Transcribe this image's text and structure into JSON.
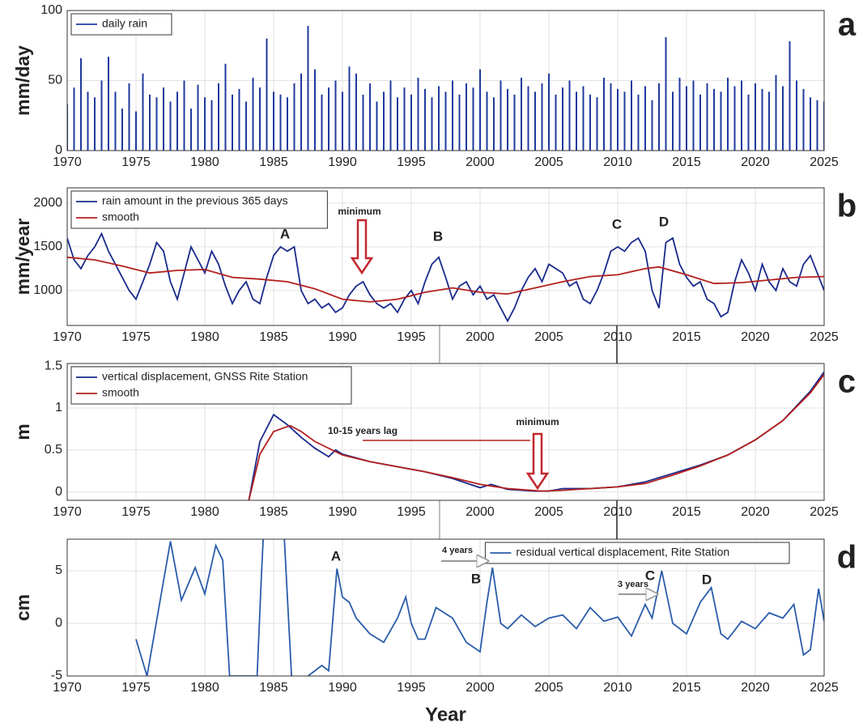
{
  "chart_data": [
    {
      "type": "bar",
      "label": "a",
      "ylabel": "mm/day",
      "xlim": [
        1970,
        2025
      ],
      "ylim": [
        0,
        100
      ],
      "xticks": [
        1970,
        1975,
        1980,
        1985,
        1990,
        1995,
        2000,
        2005,
        2010,
        2015,
        2020,
        2025
      ],
      "yticks": [
        0,
        50,
        100
      ],
      "grid": true,
      "legend": "upper left",
      "series": [
        {
          "name": "daily rain",
          "color": "#1f3a9e",
          "x": [
            1970,
            1970.5,
            1971,
            1971.5,
            1972,
            1972.5,
            1973,
            1973.5,
            1974,
            1974.5,
            1975,
            1975.5,
            1976,
            1976.5,
            1977,
            1977.5,
            1978,
            1978.5,
            1979,
            1979.5,
            1980,
            1980.5,
            1981,
            1981.5,
            1982,
            1982.5,
            1983,
            1983.5,
            1984,
            1984.5,
            1985,
            1985.5,
            1986,
            1986.5,
            1987,
            1987.5,
            1988,
            1988.5,
            1989,
            1989.5,
            1990,
            1990.5,
            1991,
            1991.5,
            1992,
            1992.5,
            1993,
            1993.5,
            1994,
            1994.5,
            1995,
            1995.5,
            1996,
            1996.5,
            1997,
            1997.5,
            1998,
            1998.5,
            1999,
            1999.5,
            2000,
            2000.5,
            2001,
            2001.5,
            2002,
            2002.5,
            2003,
            2003.5,
            2004,
            2004.5,
            2005,
            2005.5,
            2006,
            2006.5,
            2007,
            2007.5,
            2008,
            2008.5,
            2009,
            2009.5,
            2010,
            2010.5,
            2011,
            2011.5,
            2012,
            2012.5,
            2013,
            2013.5,
            2014,
            2014.5,
            2015,
            2015.5,
            2016,
            2016.5,
            2017,
            2017.5,
            2018,
            2018.5,
            2019,
            2019.5,
            2020,
            2020.5,
            2021,
            2021.5,
            2022,
            2022.5,
            2023,
            2023.5,
            2024,
            2024.5,
            2025
          ],
          "values": [
            33,
            45,
            66,
            42,
            38,
            50,
            67,
            42,
            30,
            48,
            28,
            55,
            40,
            38,
            45,
            35,
            42,
            50,
            30,
            47,
            38,
            36,
            48,
            62,
            40,
            44,
            35,
            52,
            45,
            80,
            42,
            40,
            38,
            48,
            55,
            89,
            58,
            40,
            45,
            50,
            42,
            60,
            55,
            40,
            48,
            35,
            42,
            50,
            38,
            45,
            40,
            52,
            44,
            38,
            46,
            42,
            50,
            40,
            48,
            45,
            58,
            42,
            38,
            50,
            44,
            40,
            52,
            46,
            42,
            48,
            55,
            40,
            45,
            50,
            42,
            46,
            40,
            38,
            52,
            48,
            44,
            42,
            50,
            40,
            46,
            36,
            48,
            81,
            42,
            52,
            46,
            50,
            40,
            48,
            44,
            42,
            52,
            46,
            50,
            40,
            48,
            44,
            42,
            54,
            46,
            78,
            50,
            44,
            38,
            36,
            35
          ]
        }
      ]
    },
    {
      "type": "line",
      "label": "b",
      "ylabel": "mm/year",
      "xlim": [
        1970,
        2025
      ],
      "ylim": [
        600,
        2175
      ],
      "xticks": [
        1970,
        1975,
        1980,
        1985,
        1990,
        1995,
        2000,
        2005,
        2010,
        2015,
        2020,
        2025
      ],
      "yticks": [
        1000,
        1500,
        2000
      ],
      "grid": true,
      "legend": "upper left",
      "annotations": [
        "A",
        "B",
        "C",
        "D",
        "minimum"
      ],
      "series": [
        {
          "name": "rain amount in the previous 365 days",
          "color": "#1a2a8c",
          "x": [
            1970,
            1970.5,
            1971,
            1971.5,
            1972,
            1972.5,
            1973,
            1973.5,
            1974,
            1974.5,
            1975,
            1975.5,
            1976,
            1976.5,
            1977,
            1977.5,
            1978,
            1978.5,
            1979,
            1979.5,
            1980,
            1980.5,
            1981,
            1981.5,
            1982,
            1982.5,
            1983,
            1983.5,
            1984,
            1984.5,
            1985,
            1985.5,
            1986,
            1986.5,
            1987,
            1987.5,
            1988,
            1988.5,
            1989,
            1989.5,
            1990,
            1990.5,
            1991,
            1991.5,
            1992,
            1992.5,
            1993,
            1993.5,
            1994,
            1994.5,
            1995,
            1995.5,
            1996,
            1996.5,
            1997,
            1997.5,
            1998,
            1998.5,
            1999,
            1999.5,
            2000,
            2000.5,
            2001,
            2001.5,
            2002,
            2002.5,
            2003,
            2003.5,
            2004,
            2004.5,
            2005,
            2005.5,
            2006,
            2006.5,
            2007,
            2007.5,
            2008,
            2008.5,
            2009,
            2009.5,
            2010,
            2010.5,
            2011,
            2011.5,
            2012,
            2012.5,
            2013,
            2013.5,
            2014,
            2014.5,
            2015,
            2015.5,
            2016,
            2016.5,
            2017,
            2017.5,
            2018,
            2018.5,
            2019,
            2019.5,
            2020,
            2020.5,
            2021,
            2021.5,
            2022,
            2022.5,
            2023,
            2023.5,
            2024,
            2024.5,
            2025
          ],
          "values": [
            1600,
            1350,
            1250,
            1400,
            1500,
            1650,
            1450,
            1300,
            1150,
            1000,
            900,
            1100,
            1300,
            1550,
            1450,
            1100,
            900,
            1200,
            1500,
            1350,
            1200,
            1450,
            1300,
            1050,
            850,
            1000,
            1100,
            900,
            850,
            1150,
            1400,
            1500,
            1450,
            1500,
            1000,
            850,
            900,
            800,
            850,
            750,
            800,
            950,
            1050,
            1100,
            950,
            850,
            800,
            850,
            750,
            900,
            1000,
            850,
            1100,
            1300,
            1380,
            1150,
            900,
            1050,
            1100,
            950,
            1050,
            900,
            950,
            800,
            650,
            800,
            1000,
            1150,
            1250,
            1100,
            1300,
            1250,
            1200,
            1050,
            1100,
            900,
            850,
            1000,
            1200,
            1450,
            1500,
            1450,
            1550,
            1600,
            1450,
            1000,
            800,
            1550,
            1600,
            1300,
            1150,
            1050,
            1100,
            900,
            850,
            700,
            750,
            1100,
            1350,
            1200,
            1000,
            1300,
            1100,
            1000,
            1250,
            1100,
            1050,
            1300,
            1400,
            1200,
            1000
          ]
        },
        {
          "name": "smooth",
          "color": "#b3201e",
          "x": [
            1970,
            1972,
            1974,
            1976,
            1978,
            1980,
            1982,
            1984,
            1986,
            1988,
            1990,
            1992,
            1994,
            1996,
            1998,
            2000,
            2002,
            2004,
            2006,
            2008,
            2010,
            2012,
            2013,
            2015,
            2017,
            2019,
            2021,
            2023,
            2025
          ],
          "values": [
            1380,
            1350,
            1280,
            1200,
            1230,
            1240,
            1150,
            1130,
            1100,
            1020,
            900,
            870,
            900,
            980,
            1030,
            980,
            960,
            1030,
            1100,
            1160,
            1180,
            1250,
            1270,
            1180,
            1080,
            1090,
            1120,
            1150,
            1160
          ]
        }
      ]
    },
    {
      "type": "line",
      "label": "c",
      "ylabel": "m",
      "xlim": [
        1970,
        2025
      ],
      "ylim": [
        -0.1,
        1.53
      ],
      "xticks": [
        1970,
        1975,
        1980,
        1985,
        1990,
        1995,
        2000,
        2005,
        2010,
        2015,
        2020,
        2025
      ],
      "yticks": [
        0,
        0.5,
        1,
        1.5
      ],
      "grid": true,
      "legend": "upper left",
      "annotations": [
        "10-15 years lag",
        "minimum"
      ],
      "series": [
        {
          "name": "vertical displacement, GNSS Rite Station",
          "color": "#1a2a8c",
          "x": [
            1983.2,
            1984,
            1985,
            1986,
            1987,
            1988,
            1989,
            1989.5,
            1990,
            1992,
            1994,
            1996,
            1998,
            2000,
            2000.8,
            2002,
            2004,
            2005,
            2006,
            2008,
            2010,
            2012,
            2014,
            2016,
            2018,
            2020,
            2022,
            2024,
            2025
          ],
          "values": [
            -0.1,
            0.6,
            0.92,
            0.8,
            0.65,
            0.52,
            0.42,
            0.5,
            0.45,
            0.36,
            0.3,
            0.24,
            0.16,
            0.05,
            0.09,
            0.03,
            0.01,
            0.01,
            0.04,
            0.04,
            0.06,
            0.12,
            0.22,
            0.32,
            0.44,
            0.62,
            0.85,
            1.2,
            1.43
          ]
        },
        {
          "name": "smooth",
          "color": "#b3201e",
          "x": [
            1983.2,
            1984,
            1985,
            1986.2,
            1987,
            1988,
            1990,
            1992,
            1994,
            1996,
            1998,
            2000,
            2002,
            2004.5,
            2006,
            2008,
            2010,
            2012,
            2014,
            2016,
            2018,
            2020,
            2022,
            2024,
            2025
          ],
          "values": [
            -0.1,
            0.45,
            0.72,
            0.79,
            0.72,
            0.6,
            0.44,
            0.36,
            0.3,
            0.24,
            0.17,
            0.09,
            0.04,
            0.01,
            0.02,
            0.04,
            0.06,
            0.1,
            0.2,
            0.31,
            0.44,
            0.62,
            0.85,
            1.18,
            1.4
          ]
        }
      ]
    },
    {
      "type": "line",
      "label": "d",
      "ylabel": "cm",
      "xlabel": "Year",
      "xlim": [
        1970,
        2025
      ],
      "ylim": [
        -5,
        8
      ],
      "xticks": [
        1970,
        1975,
        1980,
        1985,
        1990,
        1995,
        2000,
        2005,
        2010,
        2015,
        2020,
        2025
      ],
      "yticks": [
        -5,
        0,
        5
      ],
      "grid": true,
      "legend": "upper right",
      "annotations": [
        "A",
        "B",
        "C",
        "D",
        "4 years",
        "3 years"
      ],
      "series": [
        {
          "name": "residual vertical displacement, Rite Station",
          "color": "#2a5caa",
          "x": [
            1975,
            1975.8,
            1977.5,
            1978.3,
            1979.3,
            1980,
            1980.8,
            1981.3,
            1981.8,
            1983.8,
            1984.1,
            1984.5,
            1985.5,
            1986.3,
            1986.8,
            1987.5,
            1988.5,
            1989,
            1989.6,
            1990,
            1990.5,
            1991,
            1992,
            1993,
            1994,
            1994.6,
            1995,
            1995.5,
            1996,
            1996.8,
            1998,
            1999,
            2000,
            2000.5,
            2000.9,
            2001.5,
            2002,
            2003,
            2004,
            2005,
            2006,
            2007,
            2008,
            2009,
            2010,
            2011,
            2012,
            2012.5,
            2013.2,
            2014,
            2015,
            2016,
            2016.8,
            2017.5,
            2018,
            2019,
            2020,
            2021,
            2022,
            2022.8,
            2023.5,
            2024,
            2024.6,
            2025
          ],
          "values": [
            -1.5,
            -5,
            7.8,
            2.2,
            5.3,
            2.8,
            7.4,
            6,
            -5,
            -5,
            4.2,
            15,
            15,
            -5,
            -6,
            -5,
            -4,
            -4.5,
            5.2,
            2.5,
            2,
            0.5,
            -1,
            -1.8,
            0.5,
            2.5,
            0,
            -1.5,
            -1.5,
            1.5,
            0.5,
            -1.8,
            -2.7,
            2,
            5.3,
            0,
            -0.5,
            0.8,
            -0.3,
            0.5,
            0.8,
            -0.5,
            1.5,
            0.2,
            0.6,
            -1.2,
            1.8,
            0.5,
            5,
            0,
            -1,
            2,
            3.4,
            -1,
            -1.5,
            0.2,
            -0.5,
            1,
            0.5,
            1.8,
            -3,
            -2.5,
            3.3,
            0.2
          ]
        }
      ]
    }
  ]
}
